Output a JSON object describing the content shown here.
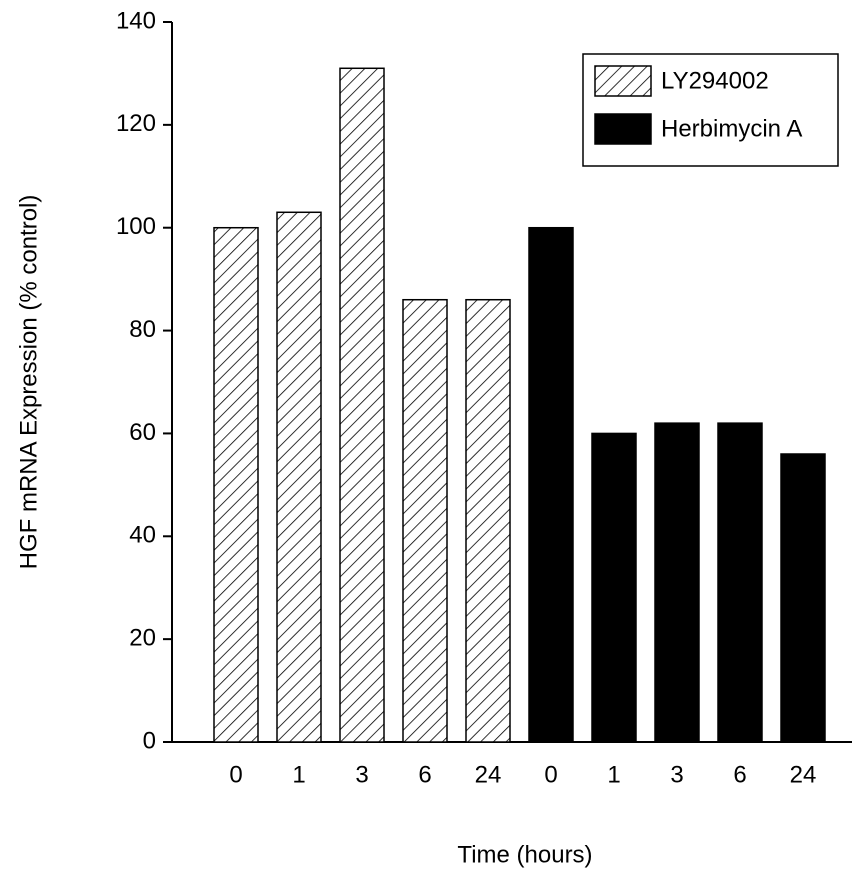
{
  "chart_data": {
    "type": "bar",
    "ylabel": "HGF mRNA Expression (% control)",
    "xlabel": "Time  (hours)",
    "categories": [
      "0",
      "1",
      "3",
      "6",
      "24",
      "0",
      "1",
      "3",
      "6",
      "24"
    ],
    "series": [
      {
        "name": "LY294002",
        "color": "#000000",
        "pattern": "hatch",
        "values": [
          100,
          103,
          131,
          86,
          86,
          null,
          null,
          null,
          null,
          null
        ]
      },
      {
        "name": "Herbimycin A",
        "color": "#000000",
        "values": [
          null,
          null,
          null,
          null,
          null,
          100,
          60,
          62,
          62,
          56
        ]
      }
    ],
    "ylim": [
      0,
      140
    ],
    "yticks": [
      0,
      20,
      40,
      60,
      80,
      100,
      120,
      140
    ],
    "legend": "upper right"
  }
}
